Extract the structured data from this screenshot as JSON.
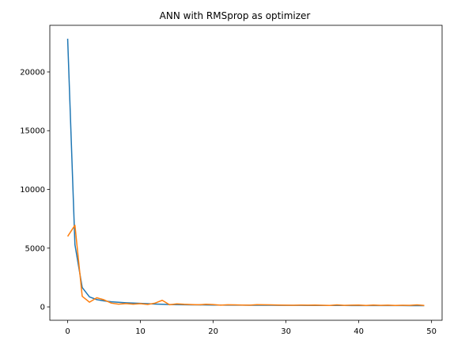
{
  "chart_data": {
    "type": "line",
    "title": "ANN with RMSprop as optimizer",
    "xlabel": "",
    "ylabel": "",
    "xlim": [
      -2.45,
      51.45
    ],
    "ylim": [
      -1140,
      23970
    ],
    "xticks": [
      0,
      10,
      20,
      30,
      40,
      50
    ],
    "yticks": [
      0,
      5000,
      10000,
      15000,
      20000
    ],
    "grid": false,
    "legend": "none",
    "x": [
      0,
      1,
      2,
      3,
      4,
      5,
      6,
      7,
      8,
      9,
      10,
      11,
      12,
      13,
      14,
      15,
      16,
      17,
      18,
      19,
      20,
      21,
      22,
      23,
      24,
      25,
      26,
      27,
      28,
      29,
      30,
      31,
      32,
      33,
      34,
      35,
      36,
      37,
      38,
      39,
      40,
      41,
      42,
      43,
      44,
      45,
      46,
      47,
      48,
      49
    ],
    "series": [
      {
        "color": "#1f77b4",
        "values": [
          22830,
          5300,
          1650,
          850,
          620,
          510,
          430,
          390,
          350,
          320,
          300,
          270,
          240,
          220,
          200,
          190,
          180,
          175,
          170,
          165,
          160,
          155,
          150,
          148,
          145,
          142,
          140,
          138,
          136,
          134,
          132,
          130,
          128,
          126,
          124,
          122,
          120,
          119,
          118,
          117,
          116,
          115,
          114,
          113,
          112,
          111,
          110,
          109,
          108,
          107
        ]
      },
      {
        "color": "#ff7f0e",
        "values": [
          6000,
          6950,
          900,
          400,
          780,
          600,
          320,
          230,
          280,
          230,
          270,
          210,
          320,
          560,
          180,
          260,
          220,
          200,
          180,
          220,
          200,
          150,
          180,
          170,
          160,
          150,
          190,
          180,
          170,
          160,
          150,
          140,
          160,
          150,
          160,
          140,
          120,
          170,
          130,
          150,
          160,
          120,
          160,
          130,
          150,
          120,
          140,
          130,
          170,
          120
        ]
      }
    ]
  }
}
